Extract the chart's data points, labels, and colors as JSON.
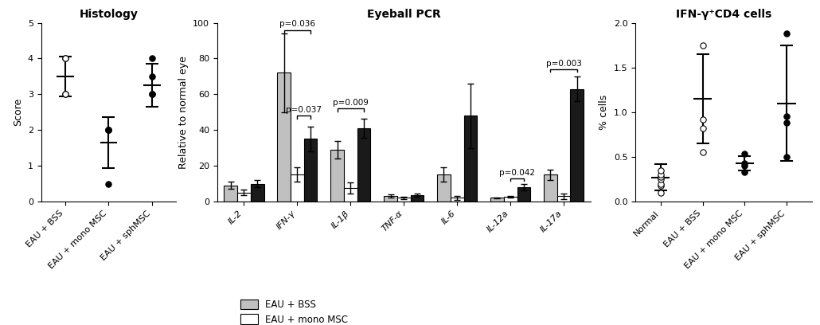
{
  "hist_title": "Histology",
  "hist_ylabel": "Score",
  "hist_xlabels": [
    "EAU + BSS",
    "EAU + mono MSC",
    "EAU + sphMSC"
  ],
  "hist_means": [
    3.5,
    1.65,
    3.25
  ],
  "hist_errors": [
    0.55,
    0.72,
    0.6
  ],
  "hist_points": [
    [
      3.0,
      3.0,
      4.0,
      4.0
    ],
    [
      2.0,
      2.0,
      2.0,
      0.5
    ],
    [
      3.0,
      3.0,
      3.5,
      4.0
    ]
  ],
  "hist_ylim": [
    0,
    5
  ],
  "hist_yticks": [
    0,
    1,
    2,
    3,
    4,
    5
  ],
  "hist_open_markers": [
    true,
    false,
    false
  ],
  "pcr_title": "Eyeball PCR",
  "pcr_ylabel": "Relative to normal eye",
  "pcr_xlabels": [
    "IL-2",
    "IFN-γ",
    "IL-1β",
    "TNF-α",
    "IL-6",
    "IL-12a",
    "IL-17a"
  ],
  "pcr_BSS": [
    9.0,
    72.0,
    29.0,
    3.0,
    15.0,
    2.0,
    15.0
  ],
  "pcr_BSS_err": [
    2.0,
    22.0,
    5.0,
    0.8,
    4.0,
    0.4,
    3.0
  ],
  "pcr_mono": [
    5.0,
    15.0,
    7.5,
    2.0,
    2.0,
    2.5,
    3.0
  ],
  "pcr_mono_err": [
    1.5,
    4.0,
    3.0,
    0.5,
    1.0,
    0.4,
    1.5
  ],
  "pcr_sph": [
    10.0,
    35.0,
    41.0,
    3.5,
    48.0,
    8.0,
    63.0
  ],
  "pcr_sph_err": [
    2.0,
    7.0,
    5.5,
    0.9,
    18.0,
    2.0,
    7.0
  ],
  "pcr_ylim": [
    0,
    100
  ],
  "pcr_yticks": [
    0,
    20,
    40,
    60,
    80,
    100
  ],
  "ifn_title": "IFN-γ⁺CD4 cells",
  "ifn_ylabel": "% cells",
  "ifn_xlabels": [
    "Normal",
    "EAU + BSS",
    "EAU + mono MSC",
    "EAU + sphMSC"
  ],
  "ifn_means": [
    0.27,
    1.15,
    0.43,
    1.1
  ],
  "ifn_errors": [
    0.15,
    0.5,
    0.08,
    0.65
  ],
  "ifn_points": [
    [
      0.1,
      0.18,
      0.2,
      0.25,
      0.28,
      0.3,
      0.35
    ],
    [
      0.55,
      0.82,
      0.92,
      1.75
    ],
    [
      0.33,
      0.4,
      0.43,
      0.53
    ],
    [
      0.5,
      0.88,
      0.95,
      1.88
    ]
  ],
  "ifn_open_markers": [
    true,
    true,
    false,
    false
  ],
  "ifn_ylim": [
    0,
    2.0
  ],
  "ifn_yticks": [
    0.0,
    0.5,
    1.0,
    1.5,
    2.0
  ],
  "color_BSS": "#c0c0c0",
  "color_mono": "#ffffff",
  "color_sph": "#1a1a1a",
  "bar_edge": "#000000",
  "bar_width": 0.25,
  "fig_bg": "#ffffff"
}
